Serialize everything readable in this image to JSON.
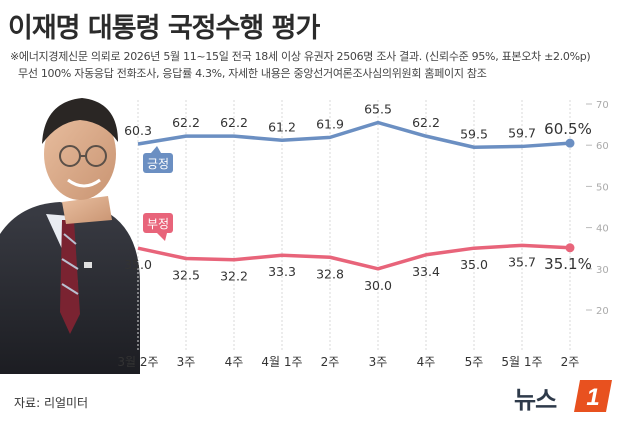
{
  "title": "이재명 대통령 국정수행 평가",
  "notes": {
    "line1": "※에너지경제신문 의뢰로 2026년 5월 11~15일 전국 18세 이상 유권자 2506명 조사 결과. (신뢰수준 95%, 표본오차 ±2.0%p)",
    "line2": "무선 100% 자동응답 전화조사, 응답률 4.3%, 자세한 내용은 중앙선거여론조사심의위원회 홈페이지 참조"
  },
  "source": "자료: 리얼미터",
  "logo": {
    "text": "뉴스",
    "badge": "1"
  },
  "colors": {
    "positive": "#6b8fc2",
    "negative": "#e8647a",
    "positive_label_bg": "#6b8fc2",
    "negative_label_bg": "#e8647a"
  },
  "chart_data": {
    "type": "line",
    "categories": [
      "3월 2주",
      "3주",
      "4주",
      "4월 1주",
      "2주",
      "3주",
      "4주",
      "5주",
      "5월 1주",
      "2주"
    ],
    "series": [
      {
        "name": "긍정",
        "values": [
          60.3,
          62.2,
          62.2,
          61.2,
          61.9,
          65.5,
          62.2,
          59.5,
          59.7,
          60.5
        ]
      },
      {
        "name": "부정",
        "values": [
          35.0,
          32.5,
          32.2,
          33.3,
          32.8,
          30.0,
          33.4,
          35.0,
          35.7,
          35.1
        ]
      }
    ],
    "value_labels": {
      "긍정": [
        "60.3",
        "62.2",
        "62.2",
        "61.2",
        "61.9",
        "65.5",
        "62.2",
        "59.5",
        "59.7",
        "60.5%"
      ],
      "부정": [
        "35.0",
        "32.5",
        "32.2",
        "33.3",
        "32.8",
        "30.0",
        "33.4",
        "35.0",
        "35.7",
        "35.1%"
      ]
    },
    "ylim": [
      20,
      70
    ],
    "yticks": [
      "70",
      "60",
      "50",
      "40",
      "30",
      "20"
    ],
    "grid": true,
    "xlabel": "",
    "ylabel": ""
  }
}
